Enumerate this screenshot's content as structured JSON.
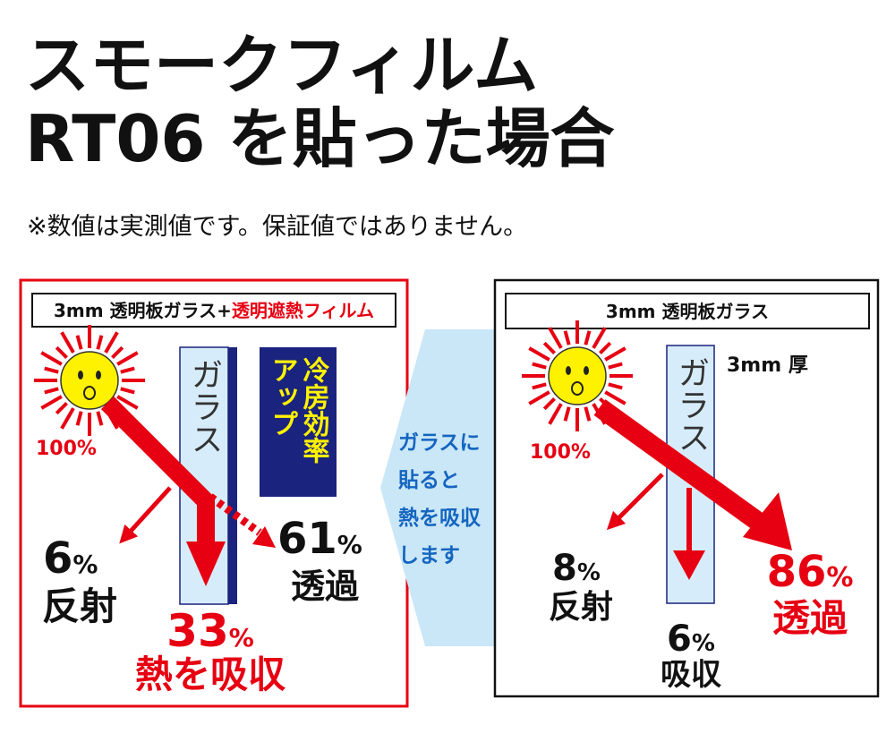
{
  "header": {
    "title_line1": "スモークフィルム",
    "title_line2": "RT06 を貼った場合",
    "note": "※数値は実測値です。保証値ではありません。"
  },
  "left_panel": {
    "label_black": "3mm 透明板ガラス+",
    "label_red": "透明遮熱フィルム",
    "sun_percent": "100%",
    "glass": "ガラス",
    "badge_col1": "冷房効率",
    "badge_col2": "アップ",
    "reflect": {
      "value": "6",
      "unit": "%",
      "label": "反射"
    },
    "transmit": {
      "value": "61",
      "unit": "%",
      "label": "透過"
    },
    "absorb": {
      "value": "33",
      "unit": "%",
      "label": "熱を吸収"
    }
  },
  "middle_arrow": {
    "lines": [
      "ガラスに",
      "貼ると",
      "熱を吸収",
      "します"
    ]
  },
  "right_panel": {
    "label": "3mm 透明板ガラス",
    "sun_percent": "100%",
    "glass": "ガラス",
    "thickness": "3mm 厚",
    "reflect": {
      "value": "8",
      "unit": "%",
      "label": "反射"
    },
    "transmit": {
      "value": "86",
      "unit": "%",
      "label": "透過"
    },
    "absorb": {
      "value": "6",
      "unit": "%",
      "label": "吸収"
    }
  }
}
